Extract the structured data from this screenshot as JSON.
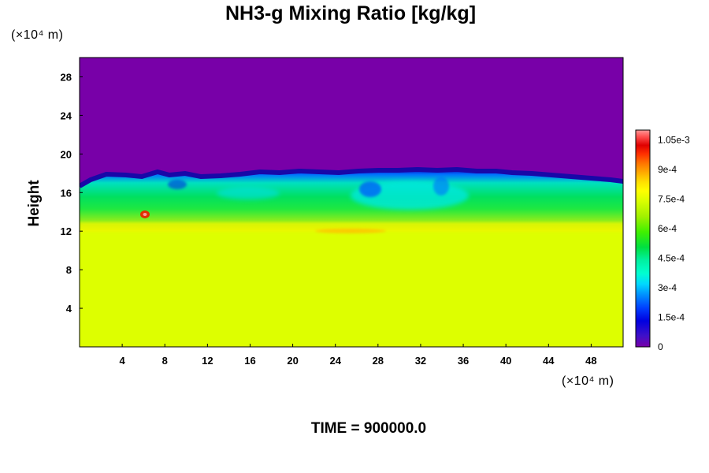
{
  "chart_data": {
    "type": "heatmap",
    "title": "NH3-g Mixing Ratio [kg/kg]",
    "ylabel": "Height",
    "x_unit": "(×10⁴ m)",
    "y_unit": "(×10⁴ m)",
    "x_range": [
      0,
      51
    ],
    "y_range": [
      0,
      30
    ],
    "x_ticks": [
      "4",
      "8",
      "12",
      "16",
      "20",
      "24",
      "28",
      "32",
      "36",
      "40",
      "44",
      "48"
    ],
    "y_ticks": [
      "4",
      "8",
      "12",
      "16",
      "20",
      "24",
      "28"
    ],
    "x_tick_values": [
      4,
      8,
      12,
      16,
      20,
      24,
      28,
      32,
      36,
      40,
      44,
      48
    ],
    "y_tick_values": [
      4,
      8,
      12,
      16,
      20,
      24,
      28
    ],
    "colorbar": {
      "min": 0,
      "max": 0.0011,
      "labels": [
        "1.05e-3",
        "9e-4",
        "7.5e-4",
        "6e-4",
        "4.5e-4",
        "3e-4",
        "1.5e-4",
        "0"
      ],
      "label_values": [
        0.00105,
        0.0009,
        0.00075,
        0.0006,
        0.00045,
        0.0003,
        0.00015,
        0
      ],
      "palette": [
        "#7800a8",
        "#4010c8",
        "#0000e0",
        "#0040ff",
        "#0090ff",
        "#00d8ff",
        "#00ffd0",
        "#00f0a0",
        "#00e040",
        "#40f000",
        "#a0f000",
        "#d8ff00",
        "#ffff00",
        "#ffe000",
        "#ffb000",
        "#ff7000",
        "#ff3000",
        "#e00000",
        "#ff5050",
        "#ff9898"
      ]
    },
    "regions": [
      {
        "desc": "upper layer",
        "y_from": 17.5,
        "y_to": 30,
        "value": 0
      },
      {
        "desc": "cloud layer",
        "y_from": 12,
        "y_to": 17.5,
        "value": 0.0005
      },
      {
        "desc": "lower layer",
        "y_from": 0,
        "y_to": 11.5,
        "value": 0.00082
      }
    ]
  },
  "footer": {
    "time_label": "TIME = 900000.0"
  }
}
